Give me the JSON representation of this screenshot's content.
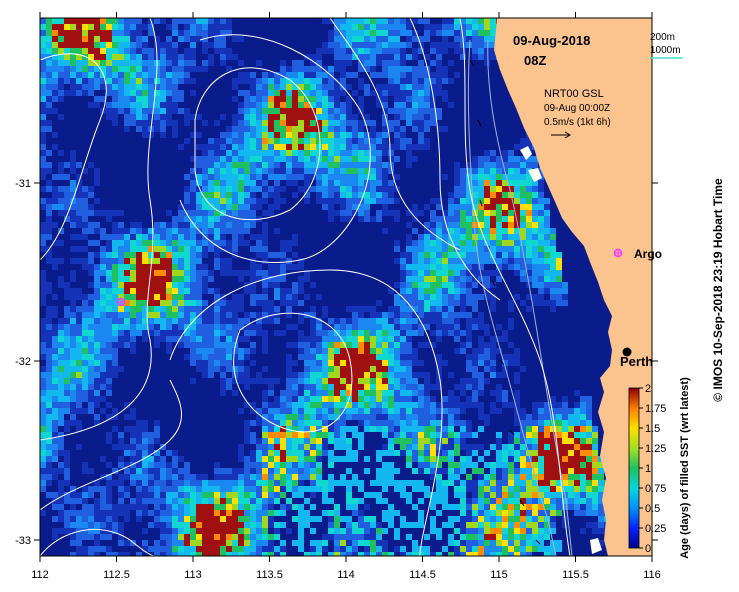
{
  "map": {
    "date_title": "09-Aug-2018",
    "time_title": "08Z",
    "legend_200m": "200m",
    "legend_1000m": "1000m",
    "current_source": "NRT00 GSL",
    "current_time": "09-Aug 00:00Z",
    "current_scale": "0.5m/s (1kt 6h)",
    "label_argo": "Argo",
    "label_perth": "Perth",
    "x_ticks": [
      "112",
      "112.5",
      "113",
      "113.5",
      "114",
      "114.5",
      "115",
      "115.5",
      "116"
    ],
    "y_ticks": [
      "-31",
      "-32",
      "-33"
    ],
    "colorbar_ticks": [
      "0",
      "0.25",
      "0.5",
      "0.75",
      "1",
      "1.25",
      "1.5",
      "1.75",
      "2"
    ],
    "colorbar_title": "Age (days) of filled SST (wrt latest)",
    "credit": "© IMOS 10-Sep-2018 23:19 Hobart Time",
    "colors": {
      "land": "#fbc38e",
      "ocean_dark": "#0a1c8c",
      "ocean_mid": "#1e45c8",
      "contour": "#ffffff",
      "marker": "#ff33ff",
      "legend_1000m_line": "#44ddcc"
    }
  }
}
